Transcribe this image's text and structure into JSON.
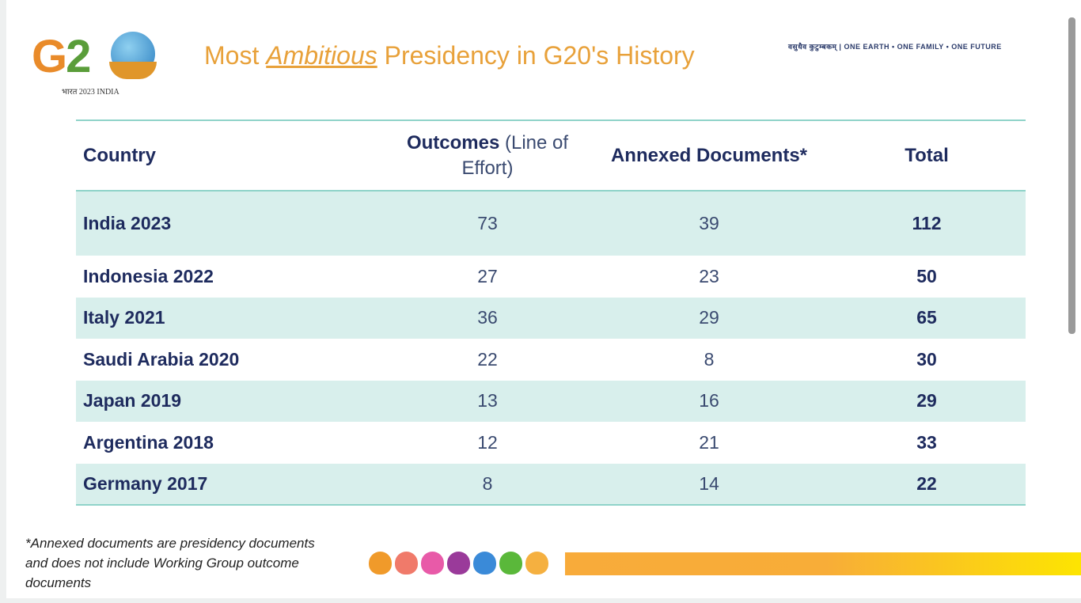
{
  "logo": {
    "text_g": "G",
    "text_2": "2",
    "subtitle": "भारत 2023 INDIA"
  },
  "title": {
    "before": "Most ",
    "emphasis": "Ambitious",
    "after": " Presidency in G20's History"
  },
  "tagline": "वसुधैव कुटुम्बकम् | ONE EARTH • ONE FAMILY • ONE FUTURE",
  "table": {
    "headers": {
      "country": "Country",
      "outcomes": "Outcomes",
      "outcomes_sub": "(Line of Effort)",
      "annexed": "Annexed Documents*",
      "total": "Total"
    },
    "rows": [
      {
        "country": "India 2023",
        "outcomes": "73",
        "annexed": "39",
        "total": "112"
      },
      {
        "country": "Indonesia 2022",
        "outcomes": "27",
        "annexed": "23",
        "total": "50"
      },
      {
        "country": "Italy 2021",
        "outcomes": "36",
        "annexed": "29",
        "total": "65"
      },
      {
        "country": "Saudi Arabia 2020",
        "outcomes": "22",
        "annexed": "8",
        "total": "30"
      },
      {
        "country": "Japan 2019",
        "outcomes": "13",
        "annexed": "16",
        "total": "29"
      },
      {
        "country": "Argentina 2018",
        "outcomes": "12",
        "annexed": "21",
        "total": "33"
      },
      {
        "country": "Germany 2017",
        "outcomes": "8",
        "annexed": "14",
        "total": "22"
      }
    ]
  },
  "footnote": "*Annexed documents are presidency documents and does not include Working Group outcome documents",
  "lotus_colors": [
    "#f09a2a",
    "#f07a6a",
    "#e85aa8",
    "#9a3a9a",
    "#3a8ad8",
    "#5ab83a",
    "#f5b040"
  ]
}
